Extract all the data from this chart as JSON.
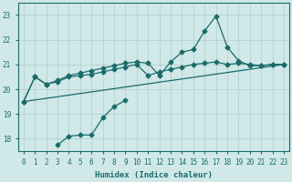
{
  "xlabel": "Humidex (Indice chaleur)",
  "bg_color": "#d0e8e8",
  "grid_color": "#b8d4d4",
  "line_color": "#1a6b6b",
  "marker": "D",
  "marker_size": 2.5,
  "xlim": [
    -0.5,
    23.5
  ],
  "ylim": [
    17.5,
    23.5
  ],
  "xticks": [
    0,
    1,
    2,
    3,
    4,
    5,
    6,
    7,
    8,
    9,
    10,
    11,
    12,
    13,
    14,
    15,
    16,
    17,
    18,
    19,
    20,
    21,
    22,
    23
  ],
  "yticks": [
    18,
    19,
    20,
    21,
    22,
    23
  ],
  "series": [
    {
      "has_markers": false,
      "x": [
        0,
        23
      ],
      "y": [
        19.5,
        21.0
      ]
    },
    {
      "has_markers": true,
      "x": [
        0,
        1,
        2,
        3,
        4,
        5,
        6,
        7,
        8,
        9,
        10,
        11,
        12,
        13,
        14,
        15,
        16,
        17,
        18,
        19,
        20,
        21,
        22,
        23
      ],
      "y": [
        19.5,
        20.5,
        20.2,
        20.3,
        20.5,
        20.55,
        20.6,
        20.7,
        20.8,
        20.9,
        21.0,
        20.55,
        20.7,
        20.8,
        20.9,
        21.0,
        21.05,
        21.1,
        21.0,
        21.05,
        21.0,
        20.95,
        21.0,
        21.0
      ]
    },
    {
      "has_markers": true,
      "x": [
        0,
        1,
        2,
        3,
        4,
        5,
        6,
        7,
        8,
        9,
        10,
        11,
        12,
        13,
        14,
        15,
        16,
        17,
        18,
        19,
        20,
        21,
        22,
        23
      ],
      "y": [
        19.5,
        20.5,
        20.2,
        20.35,
        20.55,
        20.65,
        20.75,
        20.85,
        20.95,
        21.05,
        21.1,
        21.05,
        20.55,
        21.1,
        21.5,
        21.6,
        22.35,
        22.95,
        21.7,
        21.15,
        20.95,
        20.95,
        21.0,
        21.0
      ]
    },
    {
      "has_markers": true,
      "x": [
        3,
        4,
        5,
        6,
        7,
        8,
        9
      ],
      "y": [
        17.75,
        18.1,
        18.15,
        18.15,
        18.85,
        19.3,
        19.55
      ]
    }
  ]
}
